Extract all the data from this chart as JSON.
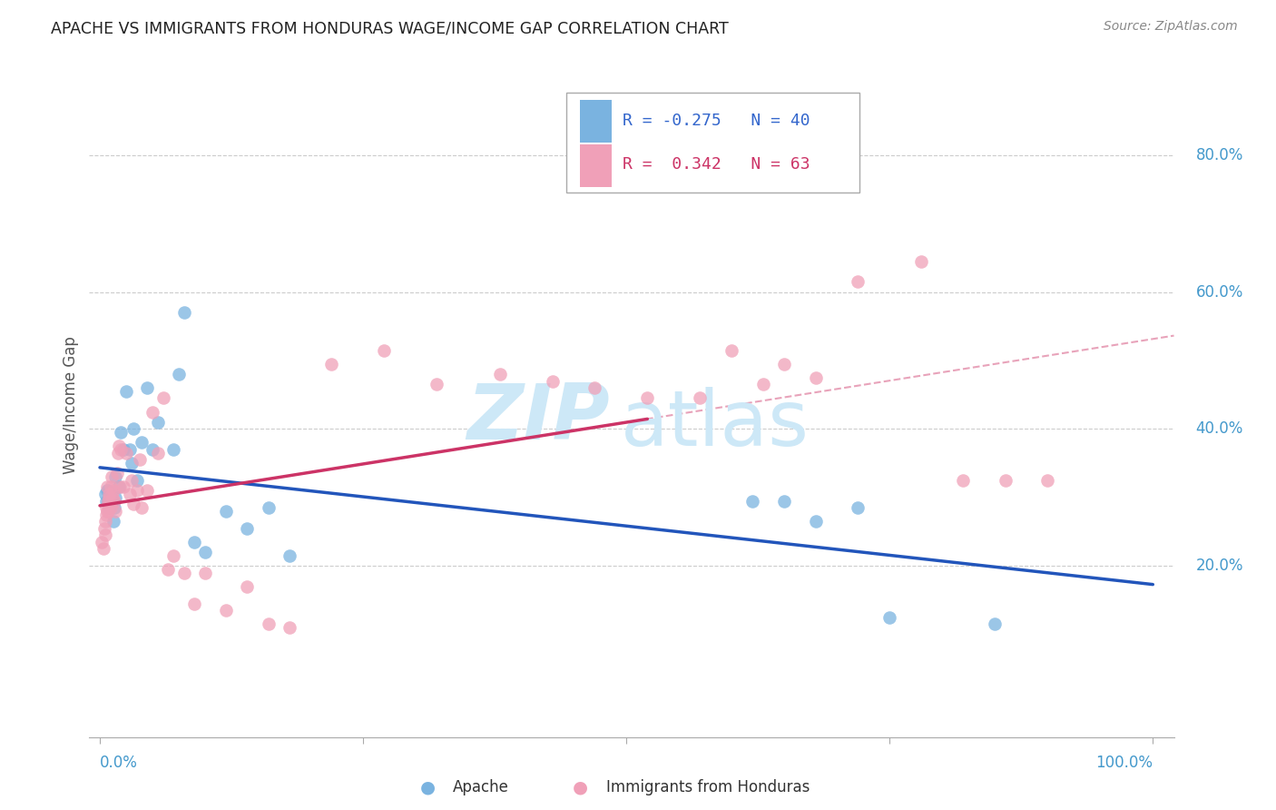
{
  "title": "APACHE VS IMMIGRANTS FROM HONDURAS WAGE/INCOME GAP CORRELATION CHART",
  "source": "Source: ZipAtlas.com",
  "ylabel": "Wage/Income Gap",
  "background_color": "#ffffff",
  "grid_color": "#cccccc",
  "watermark_zip": "ZIP",
  "watermark_atlas": "atlas",
  "watermark_color": "#cde8f7",
  "legend_apache_r": "-0.275",
  "legend_apache_n": "40",
  "legend_honduras_r": "0.342",
  "legend_honduras_n": "63",
  "apache_color": "#7ab3e0",
  "honduras_color": "#f0a0b8",
  "apache_line_color": "#2255bb",
  "honduras_line_color": "#cc3366",
  "apache_scatter_x": [
    0.005,
    0.006,
    0.007,
    0.008,
    0.008,
    0.009,
    0.01,
    0.01,
    0.012,
    0.013,
    0.014,
    0.015,
    0.015,
    0.018,
    0.02,
    0.022,
    0.025,
    0.028,
    0.03,
    0.032,
    0.035,
    0.04,
    0.045,
    0.05,
    0.055,
    0.07,
    0.075,
    0.08,
    0.09,
    0.1,
    0.12,
    0.14,
    0.16,
    0.18,
    0.62,
    0.65,
    0.68,
    0.72,
    0.75,
    0.85
  ],
  "apache_scatter_y": [
    0.305,
    0.295,
    0.31,
    0.295,
    0.31,
    0.285,
    0.29,
    0.3,
    0.295,
    0.265,
    0.285,
    0.33,
    0.3,
    0.315,
    0.395,
    0.37,
    0.455,
    0.37,
    0.35,
    0.4,
    0.325,
    0.38,
    0.46,
    0.37,
    0.41,
    0.37,
    0.48,
    0.57,
    0.235,
    0.22,
    0.28,
    0.255,
    0.285,
    0.215,
    0.295,
    0.295,
    0.265,
    0.285,
    0.125,
    0.115
  ],
  "honduras_scatter_x": [
    0.002,
    0.003,
    0.004,
    0.005,
    0.005,
    0.006,
    0.006,
    0.007,
    0.007,
    0.008,
    0.008,
    0.009,
    0.009,
    0.01,
    0.01,
    0.011,
    0.012,
    0.013,
    0.014,
    0.015,
    0.016,
    0.017,
    0.018,
    0.019,
    0.02,
    0.022,
    0.025,
    0.028,
    0.03,
    0.032,
    0.035,
    0.038,
    0.04,
    0.045,
    0.05,
    0.055,
    0.06,
    0.065,
    0.07,
    0.08,
    0.09,
    0.1,
    0.12,
    0.14,
    0.16,
    0.18,
    0.22,
    0.27,
    0.32,
    0.38,
    0.43,
    0.47,
    0.52,
    0.57,
    0.6,
    0.63,
    0.65,
    0.68,
    0.72,
    0.78,
    0.82,
    0.86,
    0.9
  ],
  "honduras_scatter_y": [
    0.235,
    0.225,
    0.255,
    0.265,
    0.245,
    0.275,
    0.285,
    0.28,
    0.315,
    0.295,
    0.28,
    0.305,
    0.3,
    0.315,
    0.285,
    0.33,
    0.3,
    0.31,
    0.295,
    0.28,
    0.335,
    0.365,
    0.375,
    0.315,
    0.37,
    0.315,
    0.365,
    0.305,
    0.325,
    0.29,
    0.31,
    0.355,
    0.285,
    0.31,
    0.425,
    0.365,
    0.445,
    0.195,
    0.215,
    0.19,
    0.145,
    0.19,
    0.135,
    0.17,
    0.115,
    0.11,
    0.495,
    0.515,
    0.465,
    0.48,
    0.47,
    0.46,
    0.445,
    0.445,
    0.515,
    0.465,
    0.495,
    0.475,
    0.615,
    0.645,
    0.325,
    0.325,
    0.325
  ]
}
